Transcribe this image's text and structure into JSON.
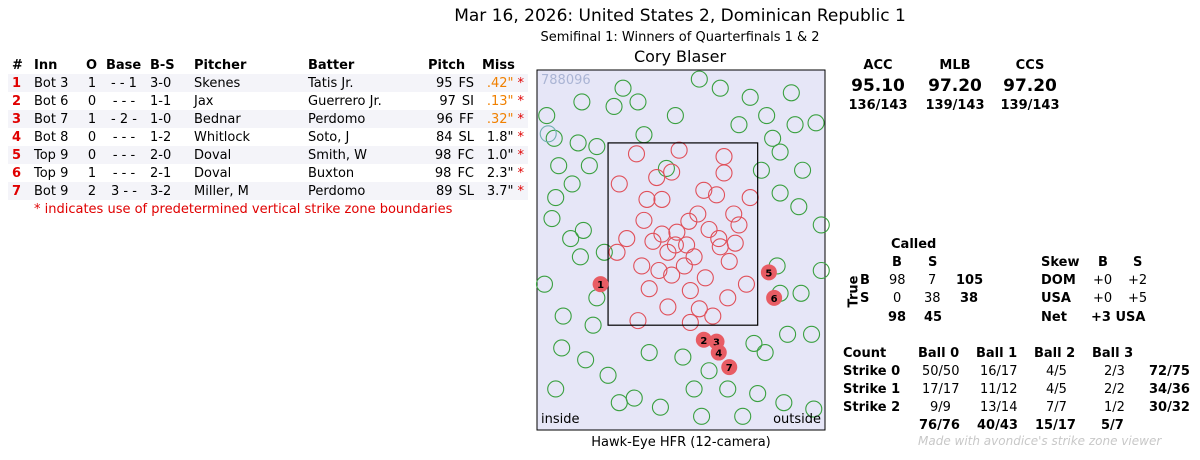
{
  "header": {
    "title": "Mar 16, 2026: United States 2, Dominican Republic 1",
    "subtitle": "Semifinal 1: Winners of Quarterfinals 1 & 2",
    "umpire": "Cory Blaser"
  },
  "missed_calls": {
    "columns": [
      "#",
      "Inn",
      "O",
      "Base",
      "B-S",
      "Pitcher",
      "Batter",
      "Pitch",
      "Miss"
    ],
    "rows": [
      {
        "num": "1",
        "inn": "Bot 3",
        "outs": "1",
        "base": "- - 1",
        "count": "3-0",
        "pitcher": "Skenes",
        "batter": "Tatis Jr.",
        "velo": "95",
        "type": "FS",
        "miss": ".42\"",
        "star": "*",
        "miss_color": "orange"
      },
      {
        "num": "2",
        "inn": "Bot 6",
        "outs": "0",
        "base": "- - -",
        "count": "1-1",
        "pitcher": "Jax",
        "batter": "Guerrero Jr.",
        "velo": "97",
        "type": "SI",
        "miss": ".13\"",
        "star": "*",
        "miss_color": "orange"
      },
      {
        "num": "3",
        "inn": "Bot 7",
        "outs": "1",
        "base": "- 2 -",
        "count": "1-0",
        "pitcher": "Bednar",
        "batter": "Perdomo",
        "velo": "96",
        "type": "FF",
        "miss": ".32\"",
        "star": "*",
        "miss_color": "orange"
      },
      {
        "num": "4",
        "inn": "Bot 8",
        "outs": "0",
        "base": "- - -",
        "count": "1-2",
        "pitcher": "Whitlock",
        "batter": "Soto, J",
        "velo": "84",
        "type": "SL",
        "miss": "1.8\"",
        "star": "*",
        "miss_color": "black"
      },
      {
        "num": "5",
        "inn": "Top 9",
        "outs": "0",
        "base": "- - -",
        "count": "2-0",
        "pitcher": "Doval",
        "batter": "Smith, W",
        "velo": "98",
        "type": "FC",
        "miss": "1.0\"",
        "star": "*",
        "miss_color": "black"
      },
      {
        "num": "6",
        "inn": "Top 9",
        "outs": "1",
        "base": "- - -",
        "count": "2-1",
        "pitcher": "Doval",
        "batter": "Buxton",
        "velo": "98",
        "type": "FC",
        "miss": "2.3\"",
        "star": "*",
        "miss_color": "black"
      },
      {
        "num": "7",
        "inn": "Bot 9",
        "outs": "2",
        "base": "3 - -",
        "count": "3-2",
        "pitcher": "Miller, M",
        "batter": "Perdomo",
        "velo": "89",
        "type": "SL",
        "miss": "3.7\"",
        "star": "*",
        "miss_color": "black"
      }
    ],
    "footnote": "* indicates use of predetermined vertical strike zone boundaries"
  },
  "chart_data": {
    "type": "scatter",
    "title": "",
    "xlabel": "Hawk-Eye HFR (12-camera)",
    "ylabel": "",
    "game_id": "788096",
    "left_label": "inside",
    "right_label": "outside",
    "colors": {
      "called_strike": "#e0505a",
      "called_ball": "#3aa040",
      "other": "#70b0b0",
      "missed_fill": "#e85c64",
      "zone_bg": "#e6e6f7"
    },
    "strike_zone": {
      "x_range": [
        -1,
        1
      ],
      "y_range": [
        -1,
        1
      ]
    },
    "axis_range": {
      "x": [
        -1.95,
        1.9
      ],
      "y": [
        -2.15,
        1.8
      ]
    },
    "called_strikes": [
      [
        -0.35,
        0.62
      ],
      [
        -0.15,
        0.68
      ],
      [
        0.55,
        0.67
      ],
      [
        -0.52,
        0.15
      ],
      [
        -0.28,
        0.38
      ],
      [
        0.2,
        0.22
      ],
      [
        0.45,
        0.43
      ],
      [
        -0.08,
        0.02
      ],
      [
        0.35,
        0.05
      ],
      [
        0.75,
        0.1
      ],
      [
        -0.75,
        -0.05
      ],
      [
        -0.4,
        -0.08
      ],
      [
        0.05,
        -0.12
      ],
      [
        0.5,
        -0.14
      ],
      [
        0.15,
        -0.25
      ],
      [
        -0.2,
        -0.2
      ],
      [
        0.62,
        -0.3
      ],
      [
        -0.55,
        -0.35
      ],
      [
        -0.15,
        -0.45
      ],
      [
        0.3,
        -0.48
      ],
      [
        0.85,
        -0.55
      ],
      [
        -0.45,
        -0.6
      ],
      [
        0.1,
        -0.62
      ],
      [
        0.6,
        -0.7
      ],
      [
        -0.2,
        -0.8
      ],
      [
        0.4,
        -0.9
      ],
      [
        -0.6,
        -0.95
      ],
      [
        0.1,
        -0.97
      ],
      [
        -0.88,
        -0.2
      ],
      [
        0.9,
        0.4
      ],
      [
        -0.05,
        0.92
      ],
      [
        0.28,
        0.48
      ],
      [
        -0.62,
        0.88
      ],
      [
        0.7,
        -0.1
      ],
      [
        0.02,
        -0.35
      ],
      [
        -0.32,
        -0.4
      ],
      [
        0.48,
        -0.05
      ],
      [
        -0.85,
        0.55
      ],
      [
        0.22,
        -0.82
      ],
      [
        -0.1,
        -0.12
      ],
      [
        0.68,
        0.22
      ],
      [
        -0.48,
        0.38
      ],
      [
        0.08,
        0.14
      ],
      [
        0.55,
        0.85
      ],
      [
        -0.28,
        0.0
      ]
    ],
    "called_balls": [
      [
        0.22,
        1.7
      ],
      [
        -0.52,
        1.09
      ],
      [
        -1.4,
        1.0
      ],
      [
        -1.66,
        0.75
      ],
      [
        -1.15,
        0.96
      ],
      [
        -0.22,
        0.72
      ],
      [
        1.12,
        1.3
      ],
      [
        1.5,
        1.2
      ],
      [
        1.3,
        0.9
      ],
      [
        -0.92,
        1.4
      ],
      [
        -1.75,
        0.17
      ],
      [
        -1.37,
        -0.25
      ],
      [
        -1.33,
        0.04
      ],
      [
        1.3,
        0.45
      ],
      [
        1.78,
        1.22
      ],
      [
        1.85,
        0.1
      ],
      [
        1.26,
        -0.35
      ],
      [
        1.58,
        -0.65
      ],
      [
        1.4,
        -1.1
      ],
      [
        1.72,
        -1.1
      ],
      [
        1.1,
        -1.3
      ],
      [
        -1.62,
        -1.25
      ],
      [
        -1.7,
        -1.7
      ],
      [
        -1.3,
        -1.38
      ],
      [
        -1.0,
        -1.55
      ],
      [
        -0.65,
        -1.8
      ],
      [
        -0.3,
        -1.9
      ],
      [
        0.25,
        -2.0
      ],
      [
        0.8,
        -2.0
      ],
      [
        1.35,
        -1.85
      ],
      [
        1.75,
        -1.92
      ],
      [
        -1.85,
        -0.55
      ],
      [
        -1.05,
        -0.2
      ],
      [
        -1.48,
        0.55
      ],
      [
        1.6,
        0.7
      ],
      [
        -0.8,
        1.6
      ],
      [
        0.5,
        1.6
      ],
      [
        -1.82,
        1.3
      ],
      [
        1.05,
        0.7
      ],
      [
        -1.2,
        -1.0
      ],
      [
        0.0,
        -1.35
      ],
      [
        0.35,
        -1.5
      ],
      [
        1.2,
        1.05
      ],
      [
        -1.5,
        -0.05
      ],
      [
        1.85,
        -0.4
      ],
      [
        -0.6,
        1.45
      ],
      [
        -1.25,
        0.75
      ],
      [
        0.9,
        1.5
      ],
      [
        -1.72,
        1.05
      ],
      [
        1.55,
        0.3
      ],
      [
        0.6,
        -1.7
      ],
      [
        -0.45,
        -1.3
      ],
      [
        1.0,
        -1.75
      ],
      [
        -1.6,
        -0.9
      ],
      [
        1.3,
        -0.65
      ],
      [
        -0.1,
        1.3
      ],
      [
        -1.35,
        1.45
      ],
      [
        0.15,
        -1.7
      ],
      [
        1.45,
        1.55
      ],
      [
        0.75,
        1.2
      ],
      [
        -1.15,
        -0.7
      ],
      [
        -1.7,
        0.4
      ],
      [
        0.95,
        -1.2
      ],
      [
        -0.85,
        -1.85
      ]
    ],
    "other_pitches": [
      [
        -1.8,
        1.1
      ]
    ],
    "missed": [
      {
        "label": "1",
        "x": -1.1,
        "y": -0.55
      },
      {
        "label": "2",
        "x": 0.28,
        "y": -1.16
      },
      {
        "label": "3",
        "x": 0.45,
        "y": -1.18
      },
      {
        "label": "4",
        "x": 0.48,
        "y": -1.3
      },
      {
        "label": "5",
        "x": 1.15,
        "y": -0.42
      },
      {
        "label": "6",
        "x": 1.22,
        "y": -0.7
      },
      {
        "label": "7",
        "x": 0.62,
        "y": -1.46
      }
    ]
  },
  "accuracy": {
    "columns": [
      {
        "label": "ACC",
        "value": "95.10",
        "ratio": "136/143"
      },
      {
        "label": "MLB",
        "value": "97.20",
        "ratio": "139/143"
      },
      {
        "label": "CCS",
        "value": "97.20",
        "ratio": "139/143"
      }
    ]
  },
  "called_matrix": {
    "title": "Called",
    "col_b": "B",
    "col_s": "S",
    "true_label": "True",
    "row_b": {
      "label": "B",
      "b": "98",
      "s": "7",
      "total": "105"
    },
    "row_s": {
      "label": "S",
      "b": "0",
      "s": "38",
      "total": "38"
    },
    "totals": {
      "b": "98",
      "s": "45"
    }
  },
  "skew": {
    "header": "Skew",
    "col_b": "B",
    "col_s": "S",
    "rows": [
      {
        "label": "DOM",
        "b": "+0",
        "s": "+2"
      },
      {
        "label": "USA",
        "b": "+0",
        "s": "+5"
      }
    ],
    "net_label": "Net",
    "net_value": "+3 USA"
  },
  "count_table": {
    "corner": "Count",
    "cols": [
      "Ball 0",
      "Ball 1",
      "Ball 2",
      "Ball 3"
    ],
    "rows": [
      {
        "label": "Strike 0",
        "vals": [
          "50/50",
          "16/17",
          "4/5",
          "2/3"
        ],
        "total": "72/75"
      },
      {
        "label": "Strike 1",
        "vals": [
          "17/17",
          "11/12",
          "4/5",
          "2/2"
        ],
        "total": "34/36"
      },
      {
        "label": "Strike 2",
        "vals": [
          "9/9",
          "13/14",
          "7/7",
          "1/2"
        ],
        "total": "30/32"
      }
    ],
    "col_totals": [
      "76/76",
      "40/43",
      "15/17",
      "5/7"
    ]
  },
  "watermark": "Made with avondice's strike zone viewer"
}
